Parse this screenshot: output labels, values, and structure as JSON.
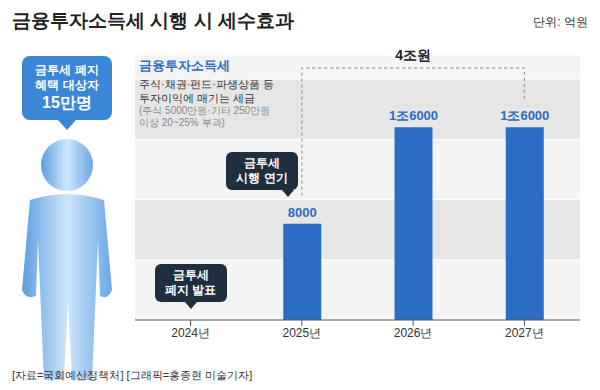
{
  "chart_data": {
    "type": "bar",
    "title": "금융투자소득세 시행 시 세수효과",
    "unit": "단위: 억원",
    "categories": [
      "2024년",
      "2025년",
      "2026년",
      "2027년"
    ],
    "values": [
      null,
      8000,
      16000,
      16000
    ],
    "value_labels": [
      null,
      "8000",
      "1조6000",
      "1조6000"
    ],
    "data_labels": true,
    "color": "#2b6cc4",
    "ylim": [
      0,
      22000
    ],
    "yticks": [
      0,
      5000,
      10000,
      15000,
      20000
    ],
    "grid": true,
    "tick_labels": "x",
    "info_box": {
      "title": "금융투자소득세",
      "description": [
        "주식·채권·펀드·파생상품 등",
        "투자이익에 매기는 세금"
      ],
      "note": [
        "(주식 5000만원·기타 250만원",
        "이상 20~25% 부과)"
      ]
    },
    "total_label": {
      "text": "4조원",
      "from": "2025년",
      "to": "2027년"
    },
    "annotations": [
      {
        "lines": [
          "금투세",
          "폐지 발표"
        ],
        "category": "2024년"
      },
      {
        "lines": [
          "금투세",
          "시행 연기"
        ],
        "category": "2025년"
      }
    ],
    "side_callout": [
      "금투세 폐지",
      "혜택 대상자",
      "15만명"
    ],
    "source": "[자료=국회예산정책처] [그래픽=홍종현 미술기자]"
  }
}
